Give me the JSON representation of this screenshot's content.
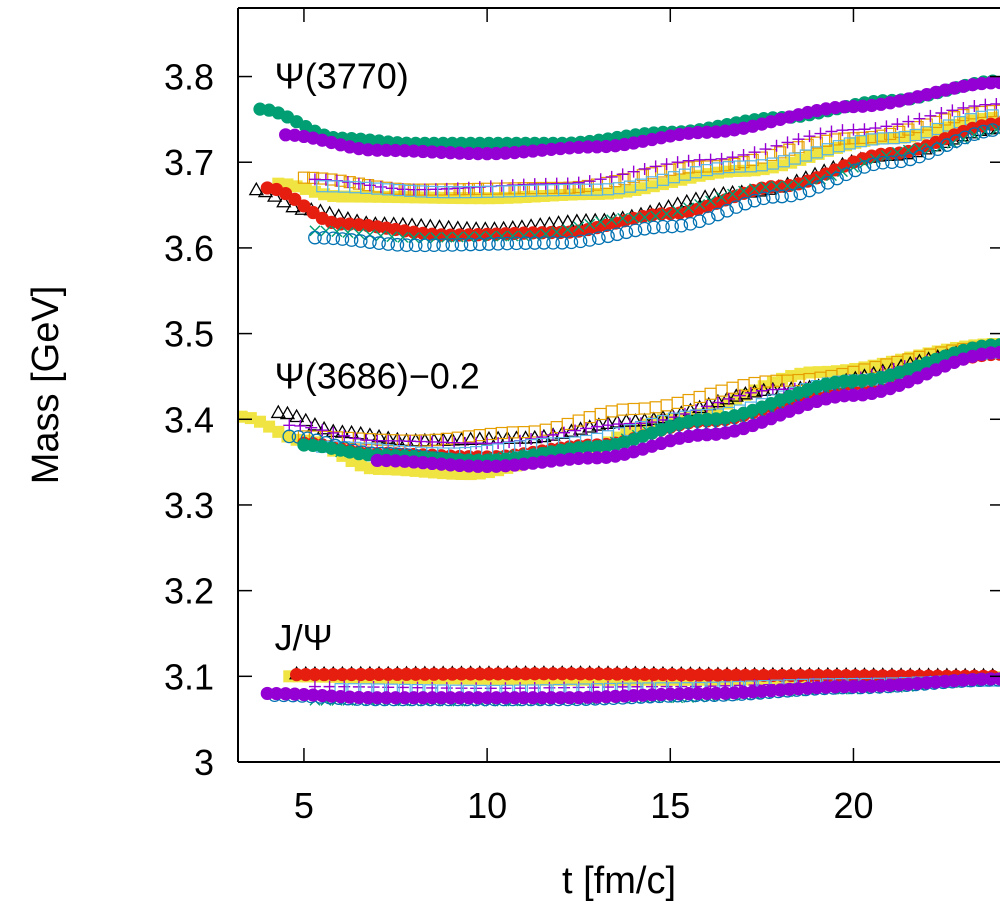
{
  "chart_data": {
    "type": "scatter",
    "xlabel": "t [fm/c]",
    "ylabel": "Mass [GeV]",
    "xlim": [
      3.2,
      24
    ],
    "ylim": [
      3.0,
      3.88
    ],
    "xticks": [
      5,
      10,
      15,
      20
    ],
    "yticks": [
      3,
      3.1,
      3.2,
      3.3,
      3.4,
      3.5,
      3.6,
      3.7,
      3.8
    ],
    "ytick_labels": [
      "3",
      "3.1",
      "3.2",
      "3.3",
      "3.4",
      "3.5",
      "3.6",
      "3.7",
      "3.8"
    ],
    "grid": false,
    "legend": "none",
    "annotations": [
      {
        "text": "Ψ(3770)",
        "x": 4.2,
        "y": 3.8
      },
      {
        "text": "Ψ(3686)−0.2",
        "x": 4.2,
        "y": 3.45
      },
      {
        "text": "J/Ψ",
        "x": 4.2,
        "y": 3.145
      }
    ],
    "series": [
      {
        "color": "#009e73",
        "marker": "circle-filled",
        "x_range": [
          3.8,
          24
        ],
        "step": 0.25,
        "knots": [
          [
            3.8,
            3.762
          ],
          [
            6,
            3.728
          ],
          [
            8,
            3.722
          ],
          [
            12,
            3.722
          ],
          [
            15,
            3.735
          ],
          [
            18,
            3.752
          ],
          [
            21,
            3.772
          ],
          [
            24,
            3.795
          ]
        ]
      },
      {
        "color": "#9400d3",
        "marker": "circle-filled",
        "x_range": [
          4.5,
          24
        ],
        "step": 0.25,
        "knots": [
          [
            4.5,
            3.732
          ],
          [
            7,
            3.714
          ],
          [
            10,
            3.71
          ],
          [
            13,
            3.718
          ],
          [
            16,
            3.735
          ],
          [
            20,
            3.765
          ],
          [
            24,
            3.793
          ]
        ]
      },
      {
        "color": "#f0e442",
        "marker": "square-filled",
        "x_range": [
          4.3,
          24
        ],
        "step": 0.25,
        "knots": [
          [
            4.3,
            3.675
          ],
          [
            6,
            3.66
          ],
          [
            10,
            3.658
          ],
          [
            13,
            3.663
          ],
          [
            17,
            3.69
          ],
          [
            21,
            3.728
          ],
          [
            24,
            3.752
          ]
        ]
      },
      {
        "color": "#e69f00",
        "marker": "square-open",
        "x_range": [
          5.0,
          24
        ],
        "step": 0.25,
        "knots": [
          [
            5.0,
            3.682
          ],
          [
            8,
            3.668
          ],
          [
            12,
            3.67
          ],
          [
            16,
            3.695
          ],
          [
            20,
            3.728
          ],
          [
            24,
            3.76
          ]
        ]
      },
      {
        "color": "#9400d3",
        "marker": "plus",
        "x_range": [
          5.3,
          24
        ],
        "step": 0.3,
        "knots": [
          [
            5.3,
            3.68
          ],
          [
            8,
            3.668
          ],
          [
            12,
            3.675
          ],
          [
            16,
            3.703
          ],
          [
            20,
            3.738
          ],
          [
            24,
            3.768
          ]
        ]
      },
      {
        "color": "#56b4e9",
        "marker": "square-open",
        "x_range": [
          5.5,
          24
        ],
        "step": 0.3,
        "knots": [
          [
            5.5,
            3.672
          ],
          [
            9,
            3.665
          ],
          [
            13,
            3.668
          ],
          [
            17,
            3.695
          ],
          [
            21,
            3.728
          ],
          [
            24,
            3.755
          ]
        ]
      },
      {
        "color": "#000000",
        "marker": "triangle-open",
        "x_range": [
          3.7,
          24
        ],
        "step": 0.25,
        "knots": [
          [
            3.7,
            3.668
          ],
          [
            5,
            3.645
          ],
          [
            7,
            3.628
          ],
          [
            10,
            3.622
          ],
          [
            13,
            3.632
          ],
          [
            17,
            3.665
          ],
          [
            21,
            3.708
          ],
          [
            24,
            3.74
          ]
        ]
      },
      {
        "color": "#e51e10",
        "marker": "circle-filled",
        "x_range": [
          4.0,
          24
        ],
        "step": 0.25,
        "knots": [
          [
            4.0,
            3.67
          ],
          [
            6,
            3.628
          ],
          [
            9,
            3.615
          ],
          [
            12,
            3.618
          ],
          [
            15,
            3.64
          ],
          [
            18,
            3.672
          ],
          [
            21,
            3.71
          ],
          [
            24,
            3.745
          ]
        ]
      },
      {
        "color": "#009e73",
        "marker": "x",
        "x_range": [
          5.3,
          24
        ],
        "step": 0.3,
        "knots": [
          [
            5.3,
            3.62
          ],
          [
            8,
            3.612
          ],
          [
            11,
            3.614
          ],
          [
            14,
            3.635
          ],
          [
            18,
            3.672
          ],
          [
            22,
            3.716
          ],
          [
            24,
            3.738
          ]
        ]
      },
      {
        "color": "#0072b2",
        "marker": "circle-open",
        "x_range": [
          5.3,
          24
        ],
        "step": 0.25,
        "knots": [
          [
            5.3,
            3.612
          ],
          [
            8,
            3.603
          ],
          [
            12,
            3.606
          ],
          [
            15,
            3.625
          ],
          [
            18,
            3.66
          ],
          [
            21,
            3.7
          ],
          [
            24,
            3.738
          ]
        ]
      },
      {
        "color": "#f0e442",
        "marker": "square-filled",
        "x_range": [
          3.3,
          24
        ],
        "step": 0.25,
        "knots": [
          [
            3.3,
            3.403
          ],
          [
            5,
            3.375
          ],
          [
            7,
            3.342
          ],
          [
            9.5,
            3.336
          ],
          [
            12,
            3.355
          ],
          [
            15,
            3.4
          ],
          [
            19,
            3.455
          ],
          [
            24,
            3.488
          ]
        ]
      },
      {
        "color": "#000000",
        "marker": "triangle-open",
        "x_range": [
          4.3,
          24
        ],
        "step": 0.25,
        "knots": [
          [
            4.3,
            3.408
          ],
          [
            6,
            3.385
          ],
          [
            8,
            3.375
          ],
          [
            11,
            3.378
          ],
          [
            14,
            3.398
          ],
          [
            18,
            3.435
          ],
          [
            24,
            3.482
          ]
        ]
      },
      {
        "color": "#e69f00",
        "marker": "square-open",
        "x_range": [
          5.0,
          24
        ],
        "step": 0.3,
        "knots": [
          [
            5.0,
            3.38
          ],
          [
            8,
            3.375
          ],
          [
            11,
            3.385
          ],
          [
            14,
            3.412
          ],
          [
            18,
            3.445
          ],
          [
            24,
            3.485
          ]
        ]
      },
      {
        "color": "#9400d3",
        "marker": "plus",
        "x_range": [
          4.6,
          24
        ],
        "step": 0.3,
        "knots": [
          [
            4.6,
            3.393
          ],
          [
            7,
            3.375
          ],
          [
            10,
            3.372
          ],
          [
            14,
            3.395
          ],
          [
            18,
            3.435
          ],
          [
            24,
            3.48
          ]
        ]
      },
      {
        "color": "#e51e10",
        "marker": "circle-filled",
        "x_range": [
          5.0,
          24
        ],
        "step": 0.25,
        "knots": [
          [
            5.0,
            3.372
          ],
          [
            7,
            3.36
          ],
          [
            10,
            3.356
          ],
          [
            13,
            3.37
          ],
          [
            16,
            3.398
          ],
          [
            20,
            3.44
          ],
          [
            24,
            3.476
          ]
        ]
      },
      {
        "color": "#56b4e9",
        "marker": "square-open",
        "x_range": [
          5.5,
          24
        ],
        "step": 0.3,
        "knots": [
          [
            5.5,
            3.368
          ],
          [
            9,
            3.36
          ],
          [
            12,
            3.372
          ],
          [
            16,
            3.405
          ],
          [
            20,
            3.445
          ],
          [
            24,
            3.478
          ]
        ]
      },
      {
        "color": "#0072b2",
        "marker": "circle-open",
        "x_range": [
          4.6,
          24
        ],
        "step": 0.25,
        "knots": [
          [
            4.6,
            3.38
          ],
          [
            7,
            3.36
          ],
          [
            10,
            3.35
          ],
          [
            13,
            3.362
          ],
          [
            16,
            3.395
          ],
          [
            20,
            3.44
          ],
          [
            24,
            3.482
          ]
        ]
      },
      {
        "color": "#009e73",
        "marker": "circle-filled",
        "x_range": [
          5.0,
          24
        ],
        "step": 0.25,
        "knots": [
          [
            5.0,
            3.37
          ],
          [
            7,
            3.358
          ],
          [
            10,
            3.352
          ],
          [
            13,
            3.368
          ],
          [
            16,
            3.4
          ],
          [
            20,
            3.445
          ],
          [
            24,
            3.487
          ]
        ]
      },
      {
        "color": "#009e73",
        "marker": "x",
        "x_range": [
          6.0,
          24
        ],
        "step": 0.3,
        "knots": [
          [
            6.0,
            3.362
          ],
          [
            9,
            3.352
          ],
          [
            12,
            3.362
          ],
          [
            16,
            3.398
          ],
          [
            20,
            3.442
          ],
          [
            24,
            3.482
          ]
        ]
      },
      {
        "color": "#9400d3",
        "marker": "circle-filled",
        "x_range": [
          7.0,
          24
        ],
        "step": 0.25,
        "knots": [
          [
            7.0,
            3.352
          ],
          [
            10,
            3.345
          ],
          [
            13,
            3.355
          ],
          [
            16,
            3.382
          ],
          [
            20,
            3.428
          ],
          [
            24,
            3.478
          ]
        ]
      },
      {
        "color": "#f0e442",
        "marker": "square-filled",
        "x_range": [
          4.6,
          24
        ],
        "step": 0.25,
        "knots": [
          [
            4.6,
            3.1
          ],
          [
            8,
            3.098
          ],
          [
            12,
            3.096
          ],
          [
            16,
            3.096
          ],
          [
            20,
            3.097
          ],
          [
            24,
            3.099
          ]
        ]
      },
      {
        "color": "#000000",
        "marker": "triangle-open",
        "x_range": [
          4.8,
          24
        ],
        "step": 0.25,
        "knots": [
          [
            4.8,
            3.103
          ],
          [
            12,
            3.104
          ],
          [
            18,
            3.102
          ],
          [
            24,
            3.101
          ]
        ]
      },
      {
        "color": "#e51e10",
        "marker": "circle-filled",
        "x_range": [
          4.8,
          24
        ],
        "step": 0.25,
        "knots": [
          [
            4.8,
            3.102
          ],
          [
            12,
            3.103
          ],
          [
            18,
            3.101
          ],
          [
            24,
            3.1
          ]
        ]
      },
      {
        "color": "#9400d3",
        "marker": "plus",
        "x_range": [
          5.3,
          24
        ],
        "step": 0.4,
        "knots": [
          [
            5.3,
            3.088
          ],
          [
            10,
            3.086
          ],
          [
            15,
            3.088
          ],
          [
            20,
            3.092
          ],
          [
            24,
            3.096
          ]
        ]
      },
      {
        "color": "#56b4e9",
        "marker": "square-open",
        "x_range": [
          6.0,
          24
        ],
        "step": 0.35,
        "knots": [
          [
            6.0,
            3.085
          ],
          [
            10,
            3.083
          ],
          [
            15,
            3.086
          ],
          [
            20,
            3.091
          ],
          [
            24,
            3.095
          ]
        ]
      },
      {
        "color": "#009e73",
        "marker": "x",
        "x_range": [
          5.3,
          24
        ],
        "step": 0.3,
        "knots": [
          [
            5.3,
            3.072
          ],
          [
            10,
            3.071
          ],
          [
            15,
            3.075
          ],
          [
            20,
            3.085
          ],
          [
            24,
            3.095
          ]
        ]
      },
      {
        "color": "#0072b2",
        "marker": "circle-open",
        "x_range": [
          4.2,
          24
        ],
        "step": 0.25,
        "knots": [
          [
            4.2,
            3.078
          ],
          [
            7,
            3.073
          ],
          [
            12,
            3.073
          ],
          [
            16,
            3.078
          ],
          [
            20,
            3.087
          ],
          [
            24,
            3.096
          ]
        ]
      },
      {
        "color": "#9400d3",
        "marker": "circle-filled",
        "x_range": [
          4.0,
          24
        ],
        "step": 0.25,
        "knots": [
          [
            4.0,
            3.08
          ],
          [
            7,
            3.075
          ],
          [
            12,
            3.075
          ],
          [
            16,
            3.08
          ],
          [
            20,
            3.088
          ],
          [
            24,
            3.097
          ]
        ]
      }
    ]
  }
}
